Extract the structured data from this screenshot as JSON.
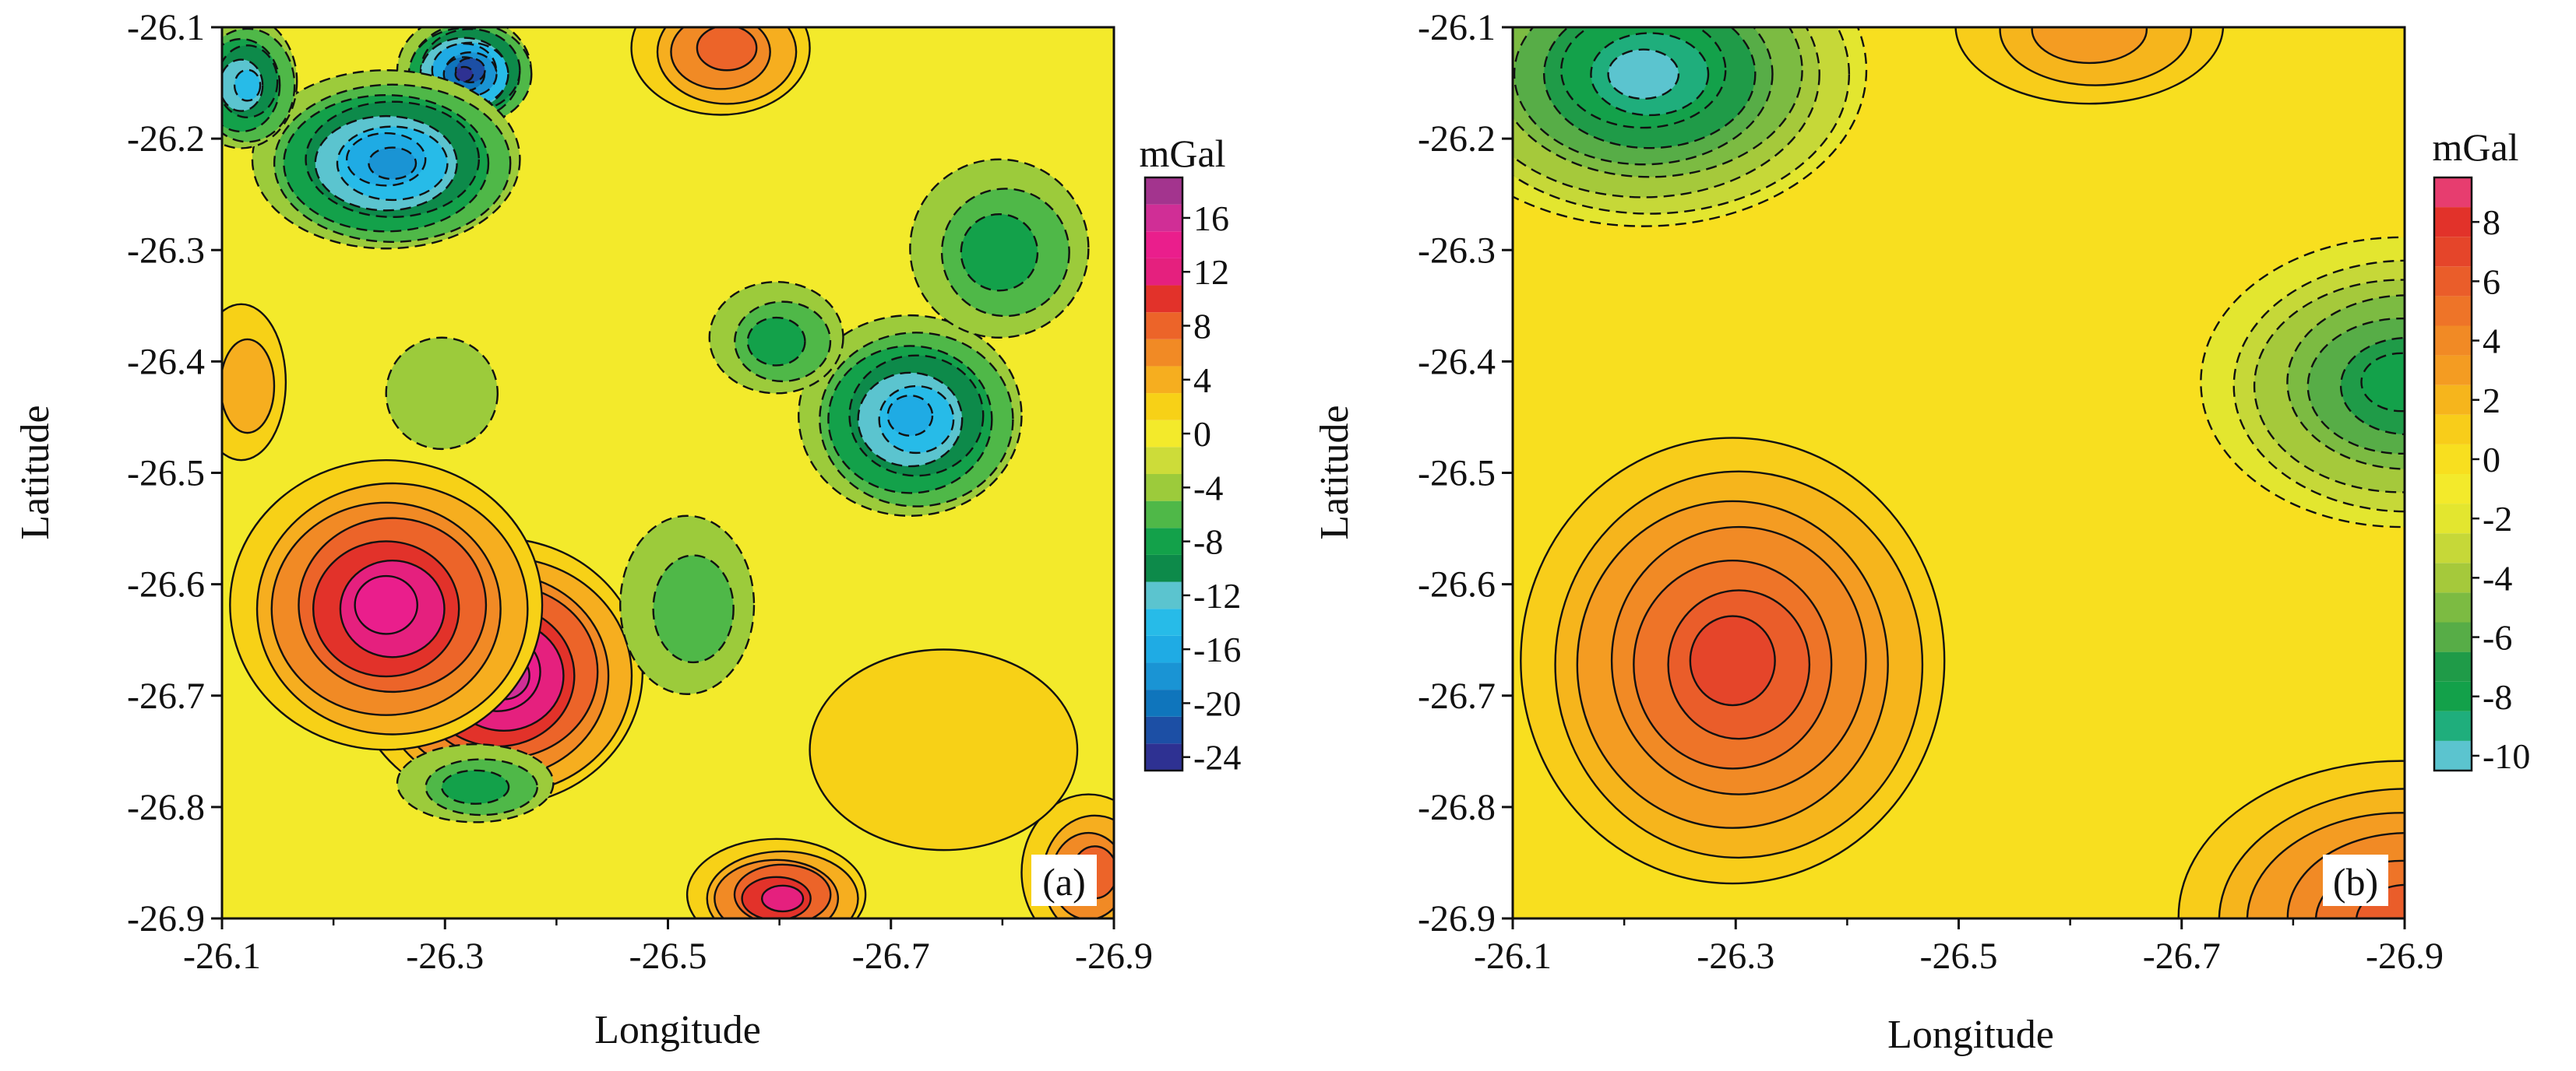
{
  "chart_data": [
    {
      "type": "heatmap",
      "panel_label": "(a)",
      "xlabel": "Longitude",
      "ylabel": "Latitude",
      "x_ticks": [
        "-26.1",
        "-26.3",
        "-26.5",
        "-26.7",
        "-26.9"
      ],
      "y_ticks": [
        "-26.1",
        "-26.2",
        "-26.3",
        "-26.4",
        "-26.5",
        "-26.6",
        "-26.7",
        "-26.8",
        "-26.9"
      ],
      "xlim": [
        -26.1,
        -26.9
      ],
      "ylim": [
        -26.9,
        -26.1
      ],
      "colorbar": {
        "unit": "mGal",
        "levels": [
          -24,
          -22,
          -20,
          -18,
          -16,
          -14,
          -12,
          -10,
          -8,
          -6,
          -4,
          -2,
          0,
          2,
          4,
          6,
          8,
          10,
          12,
          14,
          16,
          18
        ],
        "tick_labels": [
          "16",
          "12",
          "8",
          "4",
          "0",
          "-4",
          "-8",
          "-12",
          "-16",
          "-20",
          "-24"
        ],
        "tick_values": [
          16,
          12,
          8,
          4,
          0,
          -4,
          -8,
          -12,
          -16,
          -20,
          -24
        ],
        "colors": [
          "#2e3192",
          "#1c4fa5",
          "#0f75bc",
          "#1a94d4",
          "#1fabe4",
          "#27bbe8",
          "#5bc4cf",
          "#0d8a4a",
          "#13a14a",
          "#4fb848",
          "#9ccb3b",
          "#cddc39",
          "#f3ea2b",
          "#f7d117",
          "#f6ae1f",
          "#f18a25",
          "#ec6429",
          "#e2322a",
          "#e5207e",
          "#ea1e8c",
          "#d02e96",
          "#a3348e"
        ]
      },
      "anomalies": [
        {
          "lon": -26.35,
          "lat": -26.68,
          "value": 17,
          "radius": [
            0.13,
            0.12
          ]
        },
        {
          "lon": -26.25,
          "lat": -26.62,
          "value": 14,
          "radius": [
            0.14,
            0.13
          ]
        },
        {
          "lon": -26.6,
          "lat": -26.88,
          "value": 12,
          "radius": [
            0.08,
            0.05
          ]
        },
        {
          "lon": -26.55,
          "lat": -26.12,
          "value": 8,
          "radius": [
            0.08,
            0.06
          ]
        },
        {
          "lon": -26.88,
          "lat": -26.86,
          "value": 9,
          "radius": [
            0.06,
            0.07
          ]
        },
        {
          "lon": -26.75,
          "lat": -26.75,
          "value": 3,
          "radius": [
            0.12,
            0.09
          ]
        },
        {
          "lon": -26.32,
          "lat": -26.14,
          "value": -23,
          "radius": [
            0.06,
            0.05
          ]
        },
        {
          "lon": -26.25,
          "lat": -26.22,
          "value": -17,
          "radius": [
            0.12,
            0.08
          ]
        },
        {
          "lon": -26.12,
          "lat": -26.15,
          "value": -12,
          "radius": [
            0.05,
            0.06
          ]
        },
        {
          "lon": -26.72,
          "lat": -26.45,
          "value": -14,
          "radius": [
            0.1,
            0.09
          ]
        },
        {
          "lon": -26.8,
          "lat": -26.3,
          "value": -7,
          "radius": [
            0.08,
            0.08
          ]
        },
        {
          "lon": -26.6,
          "lat": -26.38,
          "value": -6,
          "radius": [
            0.06,
            0.05
          ]
        },
        {
          "lon": -26.33,
          "lat": -26.78,
          "value": -7,
          "radius": [
            0.07,
            0.035
          ]
        },
        {
          "lon": -26.52,
          "lat": -26.62,
          "value": -5,
          "radius": [
            0.06,
            0.08
          ]
        },
        {
          "lon": -26.3,
          "lat": -26.43,
          "value": -2,
          "radius": [
            0.05,
            0.05
          ]
        },
        {
          "lon": -26.12,
          "lat": -26.42,
          "value": 4,
          "radius": [
            0.04,
            0.07
          ]
        }
      ]
    },
    {
      "type": "heatmap",
      "panel_label": "(b)",
      "xlabel": "Longitude",
      "ylabel": "Latitude",
      "x_ticks": [
        "-26.1",
        "-26.3",
        "-26.5",
        "-26.7",
        "-26.9"
      ],
      "y_ticks": [
        "-26.1",
        "-26.2",
        "-26.3",
        "-26.4",
        "-26.5",
        "-26.6",
        "-26.7",
        "-26.8",
        "-26.9"
      ],
      "xlim": [
        -26.1,
        -26.9
      ],
      "ylim": [
        -26.9,
        -26.1
      ],
      "colorbar": {
        "unit": "mGal",
        "levels": [
          -10,
          -9,
          -8,
          -7,
          -6,
          -5,
          -4,
          -3,
          -2,
          -1,
          0,
          1,
          2,
          3,
          4,
          5,
          6,
          7,
          8,
          9
        ],
        "tick_labels": [
          "8",
          "6",
          "4",
          "2",
          "0",
          "-2",
          "-4",
          "-6",
          "-8",
          "-10"
        ],
        "tick_values": [
          8,
          6,
          4,
          2,
          0,
          -2,
          -4,
          -6,
          -8,
          -10
        ],
        "colors": [
          "#5bc4cf",
          "#1fae7c",
          "#13a14a",
          "#1f9b48",
          "#57ad47",
          "#7cbb42",
          "#a5c93b",
          "#c6d838",
          "#e3e62f",
          "#f3ea2b",
          "#f8df1f",
          "#f8cd1a",
          "#f6b51c",
          "#f49c22",
          "#f18a25",
          "#ee7428",
          "#ea5d2a",
          "#e5452a",
          "#e2322a",
          "#e73d6f"
        ]
      },
      "anomalies": [
        {
          "lon": -26.3,
          "lat": -26.67,
          "value": 7.5,
          "radius": [
            0.19,
            0.2
          ]
        },
        {
          "lon": -26.62,
          "lat": -26.1,
          "value": 3,
          "radius": [
            0.12,
            0.07
          ]
        },
        {
          "lon": -26.9,
          "lat": -26.9,
          "value": 6,
          "radius": [
            0.2,
            0.14
          ]
        },
        {
          "lon": -26.22,
          "lat": -26.14,
          "value": -9,
          "radius": [
            0.2,
            0.14
          ]
        },
        {
          "lon": -26.9,
          "lat": -26.42,
          "value": -7,
          "radius": [
            0.18,
            0.13
          ]
        }
      ]
    }
  ]
}
